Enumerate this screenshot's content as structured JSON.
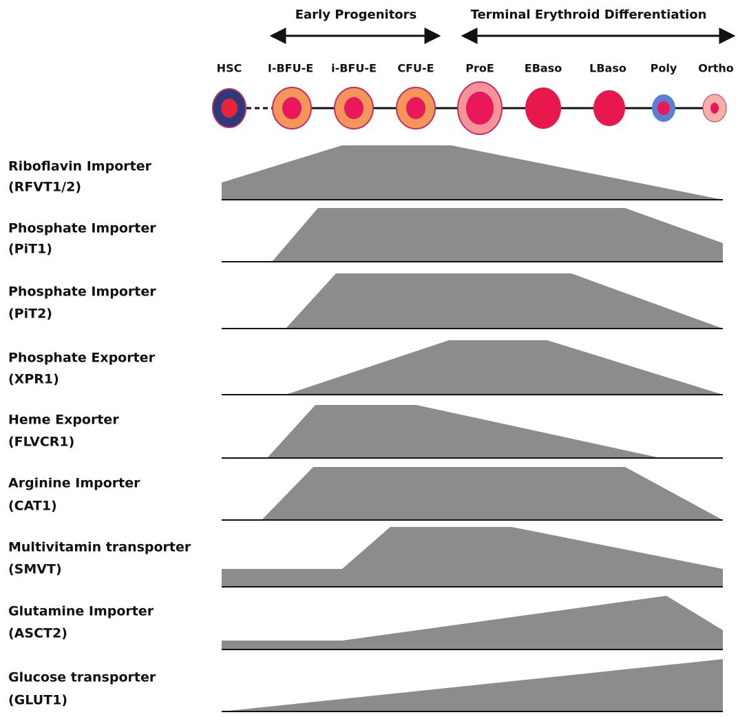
{
  "header": {
    "groups": [
      "Early Progenitors",
      "Terminal Erythroid Differentiation"
    ],
    "stages": [
      "HSC",
      "I-BFU-E",
      "i-BFU-E",
      "CFU-E",
      "ProE",
      "EBaso",
      "LBaso",
      "Poly",
      "Ortho"
    ]
  },
  "rows": [
    {
      "name": "Riboflavin Importer",
      "code": "(RFVT1/2)"
    },
    {
      "name": "Phosphate Importer",
      "code": "(PiT1)"
    },
    {
      "name": "Phosphate Importer",
      "code": "(PiT2)"
    },
    {
      "name": "Phosphate Exporter",
      "code": "(XPR1)"
    },
    {
      "name": "Heme Exporter",
      "code": "(FLVCR1)"
    },
    {
      "name": "Arginine Importer",
      "code": "(CAT1)"
    },
    {
      "name": "Multivitamin transporter",
      "code": "(SMVT)"
    },
    {
      "name": "Glutamine Importer",
      "code": "(ASCT2)"
    },
    {
      "name": "Glucose transporter",
      "code": "(GLUT1)"
    }
  ]
}
